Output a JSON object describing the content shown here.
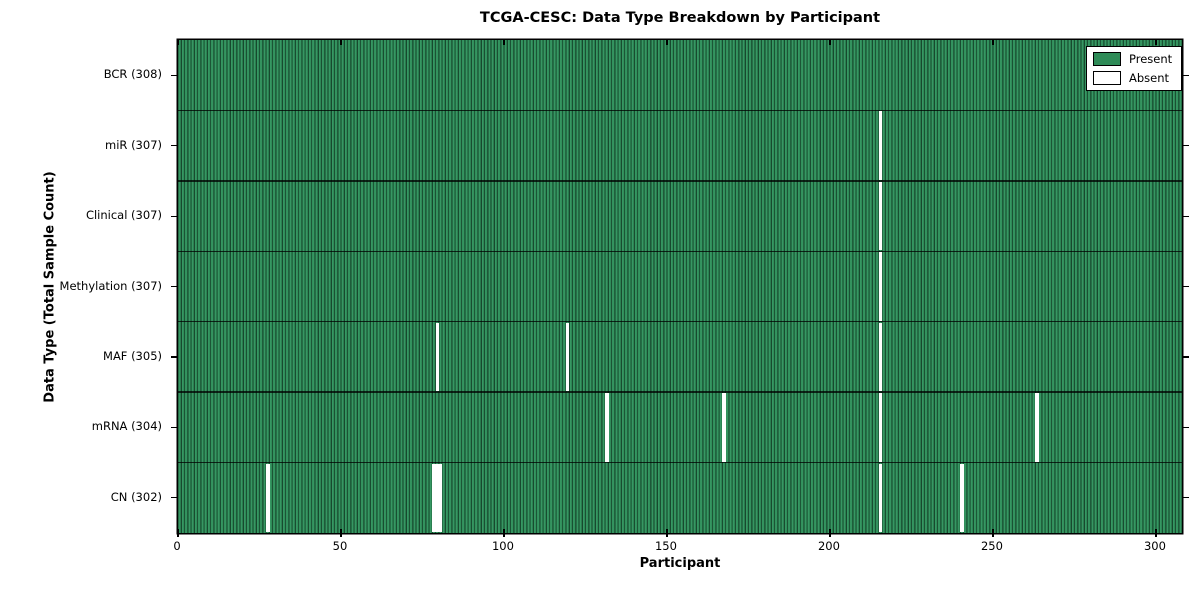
{
  "title": "TCGA-CESC: Data Type Breakdown by Participant",
  "x_axis_label": "Participant",
  "y_axis_label": "Data Type (Total Sample Count)",
  "legend": {
    "present_label": "Present",
    "absent_label": "Absent",
    "present_color": "#2e8b57",
    "absent_color": "#ffffff"
  },
  "chart_data": {
    "type": "heatmap",
    "title": "TCGA-CESC: Data Type Breakdown by Participant",
    "xlabel": "Participant",
    "ylabel": "Data Type (Total Sample Count)",
    "n_participants": 308,
    "xlim": [
      0,
      308
    ],
    "x_ticks": [
      0,
      50,
      100,
      150,
      200,
      250,
      300
    ],
    "grid": false,
    "legend_position": "upper right",
    "legend_entries": [
      {
        "label": "Present",
        "color": "#2e8b57"
      },
      {
        "label": "Absent",
        "color": "#ffffff"
      }
    ],
    "rows": [
      {
        "label": "BCR",
        "total": 308,
        "tick_label": "BCR (308)",
        "absent_participants": []
      },
      {
        "label": "miR",
        "total": 307,
        "tick_label": "miR (307)",
        "absent_participants": [
          216
        ]
      },
      {
        "label": "Clinical",
        "total": 307,
        "tick_label": "Clinical (307)",
        "absent_participants": [
          216
        ]
      },
      {
        "label": "Methylation",
        "total": 307,
        "tick_label": "Methylation (307)",
        "absent_participants": [
          216
        ]
      },
      {
        "label": "MAF",
        "total": 305,
        "tick_label": "MAF (305)",
        "absent_participants": [
          80,
          120,
          216
        ]
      },
      {
        "label": "mRNA",
        "total": 304,
        "tick_label": "mRNA (304)",
        "absent_participants": [
          132,
          168,
          216,
          264
        ]
      },
      {
        "label": "CN",
        "total": 302,
        "tick_label": "CN (302)",
        "absent_participants": [
          28,
          79,
          80,
          81,
          216,
          241
        ]
      }
    ]
  }
}
